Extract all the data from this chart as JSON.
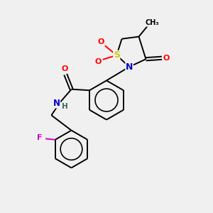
{
  "bg_color": "#f0f0f0",
  "bond_color": "#000000",
  "atom_colors": {
    "S": "#cccc00",
    "N": "#0000cc",
    "O": "#ff0000",
    "F": "#cc00cc",
    "H": "#336666"
  },
  "lw": 1.4,
  "fs": 7.5
}
